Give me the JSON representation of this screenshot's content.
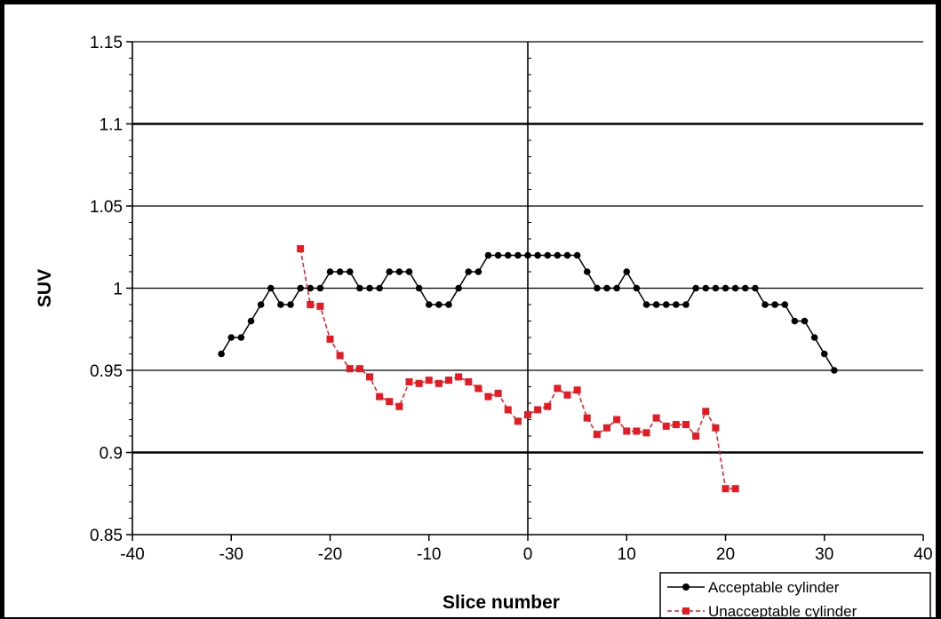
{
  "chart_data": {
    "type": "line",
    "title": "",
    "xlabel": "Slice number",
    "ylabel": "SUV",
    "xlim": [
      -40,
      40
    ],
    "ylim": [
      0.85,
      1.15
    ],
    "x_ticks": [
      -40,
      -30,
      -20,
      -10,
      0,
      10,
      20,
      30,
      40
    ],
    "x_tick_labels": [
      "-40",
      "-30",
      "-20",
      "-10",
      "0",
      "10",
      "20",
      "30",
      "40"
    ],
    "y_ticks": [
      0.85,
      0.9,
      0.95,
      1.0,
      1.05,
      1.1,
      1.15
    ],
    "y_tick_labels": [
      "0.85",
      "0.9",
      "0.95",
      "1",
      "1.05",
      "1.1",
      "1.15"
    ],
    "grid": "horizontal",
    "legend_position": "bottom-right",
    "series": [
      {
        "name": "Acceptable cylinder",
        "color": "#000000",
        "marker": "circle",
        "line_style": "solid",
        "x": [
          -31,
          -30,
          -29,
          -28,
          -27,
          -26,
          -25,
          -24,
          -23,
          -22,
          -21,
          -20,
          -19,
          -18,
          -17,
          -16,
          -15,
          -14,
          -13,
          -12,
          -11,
          -10,
          -9,
          -8,
          -7,
          -6,
          -5,
          -4,
          -3,
          -2,
          -1,
          0,
          1,
          2,
          3,
          4,
          5,
          6,
          7,
          8,
          9,
          10,
          11,
          12,
          13,
          14,
          15,
          16,
          17,
          18,
          19,
          20,
          21,
          22,
          23,
          24,
          25,
          26,
          27,
          28,
          29,
          30,
          31
        ],
        "y": [
          0.96,
          0.97,
          0.97,
          0.98,
          0.99,
          1.0,
          0.99,
          0.99,
          1.0,
          1.0,
          1.0,
          1.01,
          1.01,
          1.01,
          1.0,
          1.0,
          1.0,
          1.01,
          1.01,
          1.01,
          1.0,
          0.99,
          0.99,
          0.99,
          1.0,
          1.01,
          1.01,
          1.02,
          1.02,
          1.02,
          1.02,
          1.02,
          1.02,
          1.02,
          1.02,
          1.02,
          1.02,
          1.01,
          1.0,
          1.0,
          1.0,
          1.01,
          1.0,
          0.99,
          0.99,
          0.99,
          0.99,
          0.99,
          1.0,
          1.0,
          1.0,
          1.0,
          1.0,
          1.0,
          1.0,
          0.99,
          0.99,
          0.99,
          0.98,
          0.98,
          0.97,
          0.96,
          0.95
        ]
      },
      {
        "name": "Unacceptable cylinder",
        "color": "#e41b23",
        "marker": "square",
        "line_style": "dashed",
        "x": [
          -23,
          -22,
          -21,
          -20,
          -19,
          -18,
          -17,
          -16,
          -15,
          -14,
          -13,
          -12,
          -11,
          -10,
          -9,
          -8,
          -7,
          -6,
          -5,
          -4,
          -3,
          -2,
          -1,
          0,
          1,
          2,
          3,
          4,
          5,
          6,
          7,
          8,
          9,
          10,
          11,
          12,
          13,
          14,
          15,
          16,
          17,
          18,
          19,
          20,
          21
        ],
        "y": [
          1.024,
          0.99,
          0.989,
          0.969,
          0.959,
          0.951,
          0.951,
          0.946,
          0.934,
          0.931,
          0.928,
          0.943,
          0.942,
          0.944,
          0.942,
          0.944,
          0.946,
          0.943,
          0.939,
          0.934,
          0.936,
          0.926,
          0.919,
          0.923,
          0.926,
          0.928,
          0.939,
          0.935,
          0.938,
          0.921,
          0.911,
          0.915,
          0.92,
          0.913,
          0.913,
          0.912,
          0.921,
          0.916,
          0.917,
          0.917,
          0.91,
          0.925,
          0.915,
          0.878,
          0.878
        ]
      }
    ]
  }
}
